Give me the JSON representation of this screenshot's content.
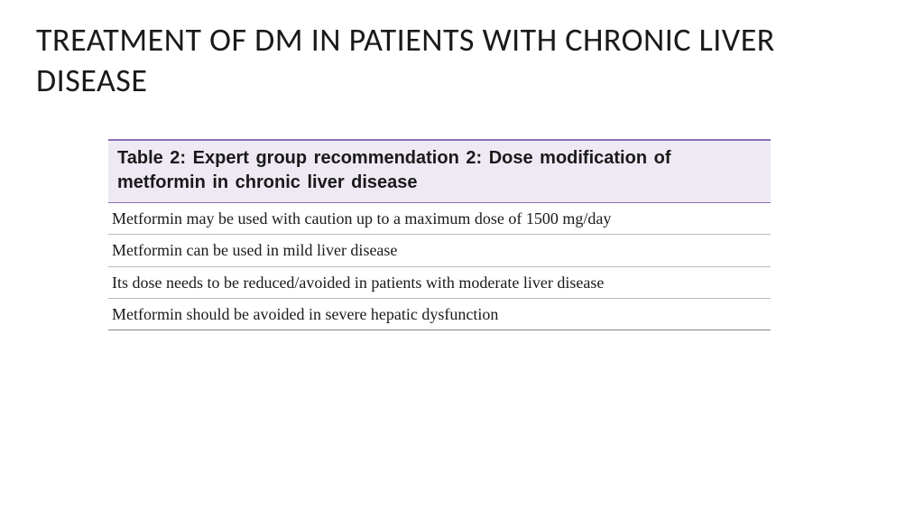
{
  "title": "TREATMENT OF DM IN PATIENTS WITH CHRONIC LIVER DISEASE",
  "table": {
    "header": "Table 2: Expert group recommendation 2: Dose modification of metformin in chronic liver disease",
    "header_bg_color": "#eee9f3",
    "header_border_color": "#8a6fb5",
    "header_fontsize": 20,
    "header_fontweight": "bold",
    "row_border_color": "#b8b8b8",
    "row_fontsize": 18,
    "rows": [
      "Metformin may be used with caution up to a maximum dose of 1500 mg/day",
      "Metformin can be used in mild liver disease",
      "Its dose needs to be reduced/avoided in patients with moderate liver disease",
      "Metformin should be avoided in severe hepatic dysfunction"
    ]
  },
  "background_color": "#ffffff",
  "title_color": "#1a1a1a",
  "title_fontsize": 36
}
